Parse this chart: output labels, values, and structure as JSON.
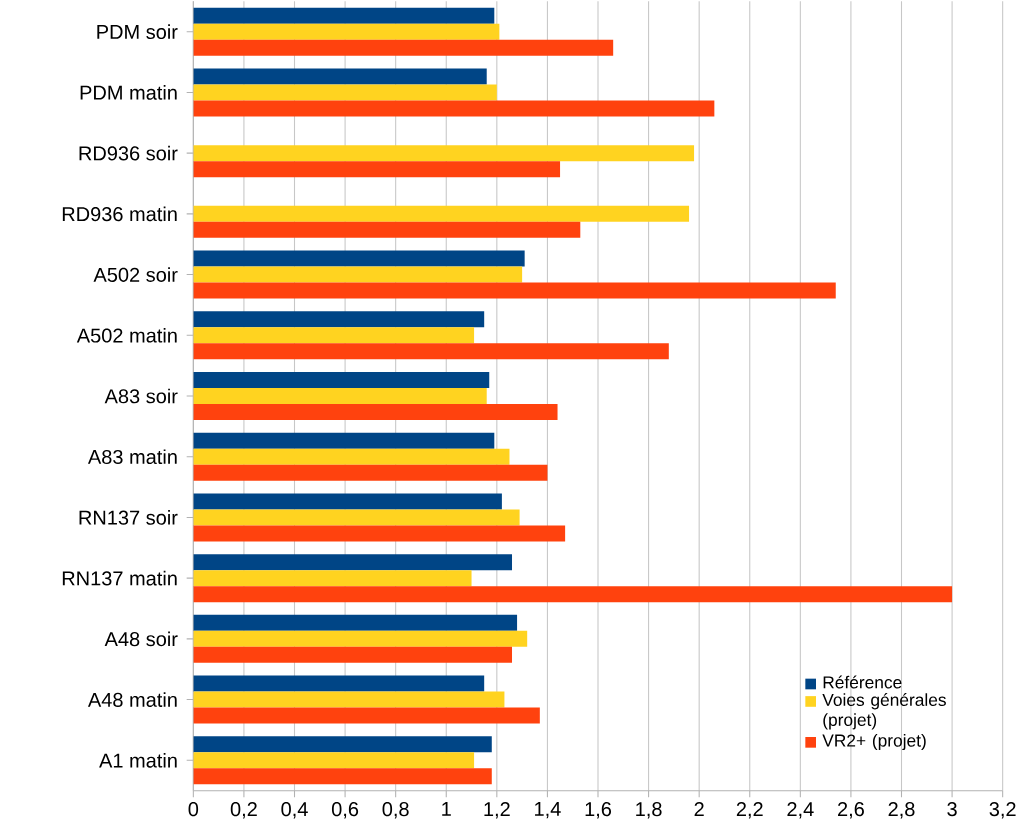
{
  "chart_data": {
    "type": "bar",
    "orientation": "horizontal",
    "categories": [
      "PDM soir",
      "PDM matin",
      "RD936 soir",
      "RD936 matin",
      "A502 soir",
      "A502 matin",
      "A83 soir",
      "A83 matin",
      "RN137 soir",
      "RN137 matin",
      "A48 soir",
      "A48 matin",
      "A1 matin"
    ],
    "series": [
      {
        "name": "Référence",
        "color": "#004586",
        "values": [
          1.19,
          1.16,
          null,
          null,
          1.31,
          1.15,
          1.17,
          1.19,
          1.22,
          1.26,
          1.28,
          1.15,
          1.18
        ]
      },
      {
        "name": "Voies générales (projet)",
        "color": "#ffd320",
        "values": [
          1.21,
          1.2,
          1.98,
          1.96,
          1.3,
          1.11,
          1.16,
          1.25,
          1.29,
          1.1,
          1.32,
          1.23,
          1.11
        ]
      },
      {
        "name": "VR2+ (projet)",
        "color": "#ff420e",
        "values": [
          1.66,
          2.06,
          1.45,
          1.53,
          2.54,
          1.88,
          1.44,
          1.4,
          1.47,
          3.0,
          1.26,
          1.37,
          1.18
        ]
      }
    ],
    "xlim": [
      0,
      3.2
    ],
    "xticks": [
      0,
      {
        "value": 0.2,
        "label": "0,2"
      },
      {
        "value": 0.4,
        "label": "0,4"
      },
      {
        "value": 0.6,
        "label": "0,6"
      },
      {
        "value": 0.8,
        "label": "0,8"
      },
      1,
      {
        "value": 1.2,
        "label": "1,2"
      },
      {
        "value": 1.4,
        "label": "1,4"
      },
      {
        "value": 1.6,
        "label": "1,6"
      },
      {
        "value": 1.8,
        "label": "1,8"
      },
      2,
      {
        "value": 2.2,
        "label": "2,2"
      },
      {
        "value": 2.4,
        "label": "2,4"
      },
      {
        "value": 2.6,
        "label": "2,6"
      },
      {
        "value": 2.8,
        "label": "2,8"
      },
      3,
      {
        "value": 3.2,
        "label": "3,2"
      }
    ],
    "grid": "x",
    "legend": "bottom right"
  }
}
